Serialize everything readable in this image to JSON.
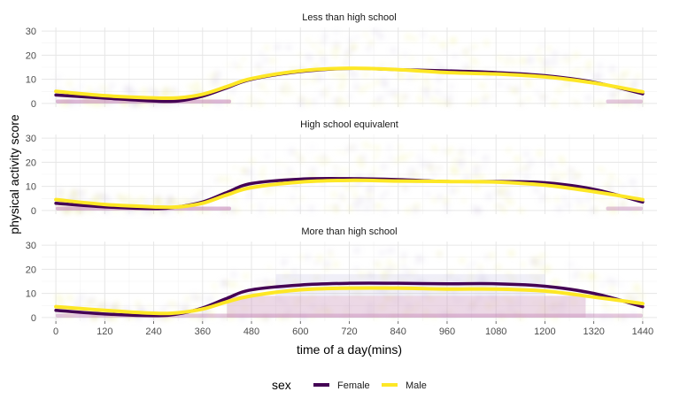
{
  "chart_data": {
    "type": "line",
    "facet_by": "education",
    "xlabel": "time of a day(mins)",
    "ylabel": "physical activity score",
    "xlim": [
      -35,
      1475
    ],
    "ylim": [
      -1.5,
      31.5
    ],
    "x_ticks": [
      0,
      120,
      240,
      360,
      480,
      600,
      720,
      840,
      960,
      1080,
      1200,
      1320,
      1440
    ],
    "y_ticks": [
      0,
      10,
      20,
      30
    ],
    "grid": true,
    "legend": {
      "title": "sex",
      "position": "bottom",
      "entries": [
        {
          "label": "Female",
          "color": "#440154"
        },
        {
          "label": "Male",
          "color": "#FDE725"
        }
      ]
    },
    "panels": [
      {
        "title": "Less than high school",
        "x": [
          0,
          120,
          240,
          300,
          360,
          420,
          480,
          600,
          720,
          840,
          960,
          1080,
          1200,
          1320,
          1440
        ],
        "series": [
          {
            "name": "Female",
            "color": "#440154",
            "values": [
              3.5,
              2.2,
              1.0,
              1.0,
              3.0,
              6.5,
              10.0,
              13.2,
              14.5,
              14.0,
              13.5,
              12.8,
              11.5,
              8.8,
              4.0
            ]
          },
          {
            "name": "Male",
            "color": "#FDE725",
            "values": [
              5.0,
              3.2,
              2.3,
              2.3,
              3.8,
              7.0,
              10.3,
              13.5,
              14.6,
              14.0,
              12.8,
              12.2,
              11.0,
              8.5,
              4.8
            ]
          }
        ]
      },
      {
        "title": "High school equivalent",
        "x": [
          0,
          120,
          240,
          300,
          360,
          420,
          480,
          600,
          720,
          840,
          960,
          1080,
          1200,
          1320,
          1440
        ],
        "series": [
          {
            "name": "Female",
            "color": "#440154",
            "values": [
              3.0,
              1.5,
              0.8,
              1.5,
              3.5,
              7.5,
              11.2,
              13.0,
              13.2,
              12.8,
              12.0,
              12.0,
              11.5,
              8.8,
              3.5
            ]
          },
          {
            "name": "Male",
            "color": "#FDE725",
            "values": [
              4.5,
              2.5,
              1.5,
              1.5,
              3.0,
              6.5,
              9.5,
              11.8,
              12.5,
              12.2,
              12.0,
              11.8,
              10.5,
              7.8,
              4.5
            ]
          }
        ]
      },
      {
        "title": "More than high school",
        "x": [
          0,
          120,
          240,
          300,
          360,
          420,
          480,
          600,
          720,
          840,
          960,
          1080,
          1200,
          1320,
          1440
        ],
        "series": [
          {
            "name": "Female",
            "color": "#440154",
            "values": [
              3.0,
              1.5,
              0.8,
              1.5,
              4.0,
              8.0,
              11.5,
              13.5,
              14.2,
              14.2,
              14.0,
              14.0,
              13.0,
              10.0,
              4.5
            ]
          },
          {
            "name": "Male",
            "color": "#FDE725",
            "values": [
              4.5,
              3.0,
              1.8,
              2.0,
              3.5,
              6.5,
              9.0,
              11.5,
              12.2,
              12.2,
              11.8,
              11.8,
              11.0,
              8.5,
              5.8
            ]
          }
        ]
      }
    ]
  }
}
